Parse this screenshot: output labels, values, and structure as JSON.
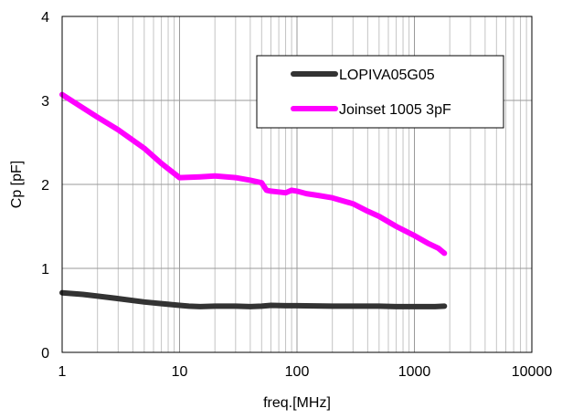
{
  "chart_data": {
    "type": "line",
    "xlabel": "freq.[MHz]",
    "ylabel": "Cp [pF]",
    "xscale": "log",
    "xlim": [
      1,
      10000
    ],
    "ylim": [
      0,
      4
    ],
    "xticks": [
      1,
      10,
      100,
      1000,
      10000
    ],
    "xtick_labels": [
      "1",
      "10",
      "100",
      "1000",
      "10000"
    ],
    "yticks": [
      0,
      1,
      2,
      3,
      4
    ],
    "ytick_labels": [
      "0",
      "1",
      "2",
      "3",
      "4"
    ],
    "grid": "vertical log minor and major gridlines, horizontal gridlines at each y tick",
    "legend_position": "top-right",
    "series": [
      {
        "name": "LOPIVA05G05",
        "color": "#333333",
        "points": [
          [
            1,
            0.71
          ],
          [
            1.5,
            0.69
          ],
          [
            2,
            0.67
          ],
          [
            3,
            0.64
          ],
          [
            5,
            0.6
          ],
          [
            7,
            0.58
          ],
          [
            10,
            0.56
          ],
          [
            12,
            0.55
          ],
          [
            15,
            0.545
          ],
          [
            20,
            0.55
          ],
          [
            30,
            0.55
          ],
          [
            40,
            0.545
          ],
          [
            50,
            0.55
          ],
          [
            60,
            0.56
          ],
          [
            80,
            0.555
          ],
          [
            100,
            0.555
          ],
          [
            200,
            0.55
          ],
          [
            300,
            0.55
          ],
          [
            500,
            0.55
          ],
          [
            700,
            0.545
          ],
          [
            1000,
            0.545
          ],
          [
            1500,
            0.545
          ],
          [
            1800,
            0.55
          ]
        ]
      },
      {
        "name": "Joinset 1005 3pF",
        "color": "#ff00ff",
        "points": [
          [
            1,
            3.07
          ],
          [
            2,
            2.8
          ],
          [
            3,
            2.65
          ],
          [
            5,
            2.43
          ],
          [
            7,
            2.25
          ],
          [
            10,
            2.08
          ],
          [
            15,
            2.09
          ],
          [
            20,
            2.1
          ],
          [
            30,
            2.08
          ],
          [
            40,
            2.05
          ],
          [
            50,
            2.02
          ],
          [
            55,
            1.93
          ],
          [
            60,
            1.92
          ],
          [
            70,
            1.91
          ],
          [
            80,
            1.9
          ],
          [
            90,
            1.93
          ],
          [
            100,
            1.92
          ],
          [
            120,
            1.89
          ],
          [
            150,
            1.87
          ],
          [
            200,
            1.84
          ],
          [
            300,
            1.77
          ],
          [
            400,
            1.68
          ],
          [
            500,
            1.62
          ],
          [
            700,
            1.5
          ],
          [
            1000,
            1.39
          ],
          [
            1300,
            1.3
          ],
          [
            1600,
            1.24
          ],
          [
            1800,
            1.18
          ]
        ]
      }
    ]
  }
}
